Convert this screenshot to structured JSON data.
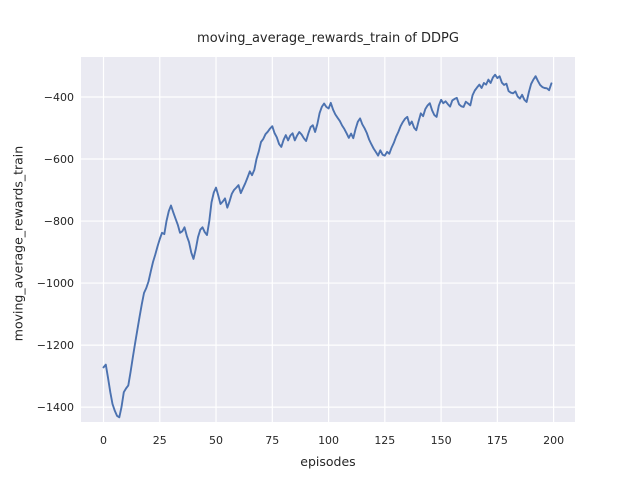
{
  "figure": {
    "background": "#ffffff"
  },
  "chart_data": {
    "type": "line",
    "title": "moving_average_rewards_train of DDPG",
    "xlabel": "episodes",
    "ylabel": "moving_average_rewards_train",
    "grid": true,
    "legend": "none",
    "plot_background": "#eaeaf2",
    "grid_color": "#ffffff",
    "text_color": "#262626",
    "xlim": [
      -10,
      209.5
    ],
    "ylim": [
      -1448,
      -271
    ],
    "xticks": [
      0,
      25,
      50,
      75,
      100,
      125,
      150,
      175,
      200
    ],
    "yticks": [
      -400,
      -600,
      -800,
      -1000,
      -1200,
      -1400
    ],
    "x_start": 0,
    "x_step": 1,
    "series": [
      {
        "name": "moving_average_rewards_train",
        "color": "#4c72b0",
        "values": [
          -1272,
          -1263,
          -1305,
          -1352,
          -1390,
          -1412,
          -1428,
          -1433,
          -1400,
          -1352,
          -1340,
          -1330,
          -1288,
          -1240,
          -1196,
          -1152,
          -1110,
          -1068,
          -1032,
          -1016,
          -995,
          -962,
          -932,
          -908,
          -882,
          -858,
          -838,
          -842,
          -800,
          -768,
          -750,
          -772,
          -792,
          -812,
          -838,
          -833,
          -820,
          -848,
          -868,
          -902,
          -922,
          -890,
          -852,
          -828,
          -820,
          -836,
          -845,
          -800,
          -740,
          -708,
          -692,
          -718,
          -745,
          -737,
          -727,
          -757,
          -737,
          -712,
          -700,
          -692,
          -684,
          -710,
          -694,
          -678,
          -660,
          -640,
          -652,
          -635,
          -600,
          -575,
          -545,
          -535,
          -520,
          -512,
          -502,
          -494,
          -516,
          -530,
          -552,
          -561,
          -538,
          -523,
          -540,
          -524,
          -517,
          -540,
          -524,
          -513,
          -521,
          -533,
          -542,
          -518,
          -497,
          -491,
          -513,
          -488,
          -452,
          -432,
          -421,
          -432,
          -437,
          -419,
          -441,
          -456,
          -467,
          -477,
          -492,
          -503,
          -517,
          -532,
          -518,
          -533,
          -503,
          -480,
          -469,
          -488,
          -501,
          -516,
          -537,
          -552,
          -566,
          -577,
          -589,
          -572,
          -586,
          -589,
          -577,
          -583,
          -563,
          -548,
          -528,
          -513,
          -494,
          -481,
          -470,
          -464,
          -490,
          -479,
          -499,
          -507,
          -478,
          -453,
          -462,
          -439,
          -427,
          -420,
          -443,
          -458,
          -464,
          -428,
          -409,
          -420,
          -414,
          -423,
          -431,
          -411,
          -406,
          -403,
          -424,
          -430,
          -432,
          -415,
          -421,
          -427,
          -394,
          -379,
          -369,
          -360,
          -371,
          -355,
          -360,
          -344,
          -355,
          -337,
          -328,
          -339,
          -333,
          -354,
          -361,
          -357,
          -381,
          -386,
          -388,
          -382,
          -398,
          -405,
          -393,
          -409,
          -416,
          -384,
          -358,
          -344,
          -333,
          -348,
          -361,
          -368,
          -371,
          -372,
          -378,
          -356
        ]
      }
    ]
  }
}
